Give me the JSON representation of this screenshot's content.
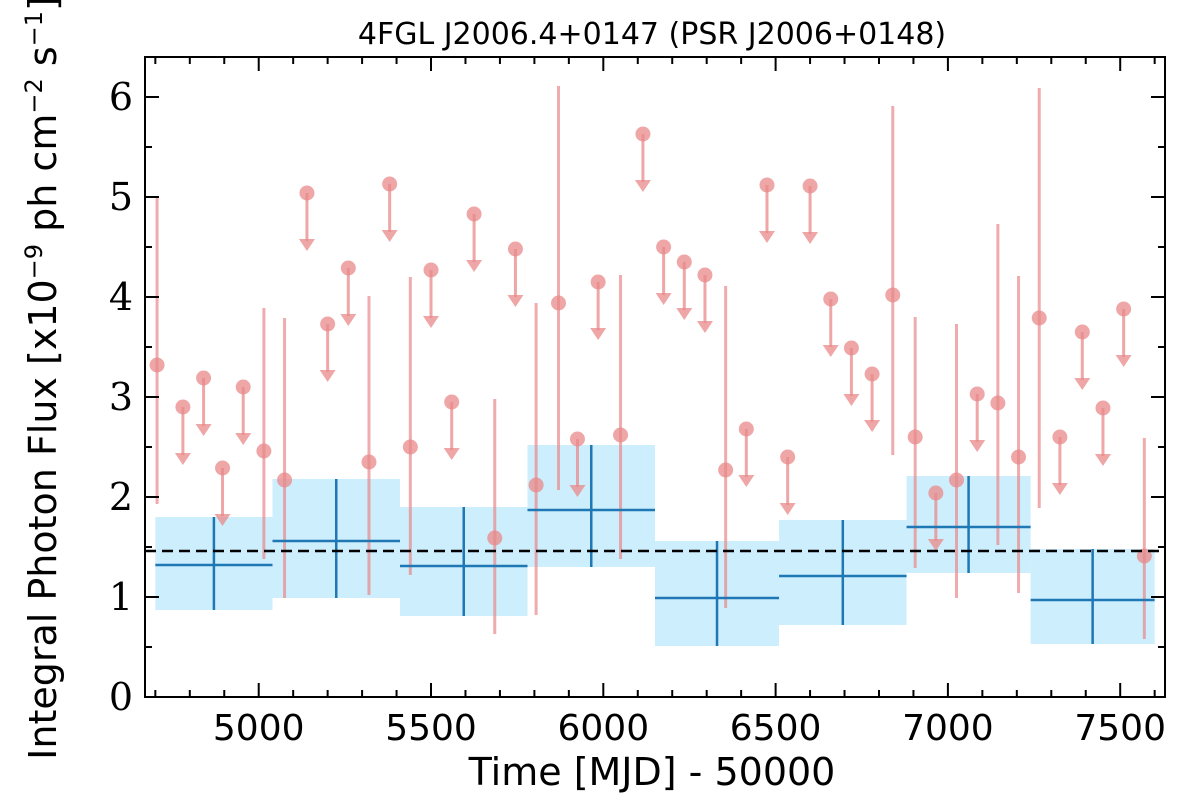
{
  "chart_data": {
    "type": "scatter",
    "title": "4FGL J2006.4+0147 (PSR J2006+0148)",
    "xlabel": "Time [MJD] - 50000",
    "ylabel": "Integral Photon Flux [x10",
    "ylabel_exp1": "−9",
    "ylabel_mid": " ph cm",
    "ylabel_exp2": "−2",
    "ylabel_mid2": " s",
    "ylabel_exp3": "−1",
    "ylabel_end": "]",
    "xlim": [
      4670,
      7630
    ],
    "ylim": [
      0,
      6.4
    ],
    "xticks": [
      5000,
      5500,
      6000,
      6500,
      7000,
      7500
    ],
    "xtick_labels": [
      "5000",
      "5500",
      "6000",
      "6500",
      "7000",
      "7500"
    ],
    "yticks": [
      0,
      1,
      2,
      3,
      4,
      5,
      6
    ],
    "ytick_labels": [
      "0",
      "1",
      "2",
      "3",
      "4",
      "5",
      "6"
    ],
    "mean_flux": 1.46,
    "colors": {
      "short_bin": "#e8888a",
      "long_bin": "#1f77b4",
      "band": "#cdeefc",
      "mean": "#000000"
    },
    "long_bins": [
      {
        "x0": 4700,
        "x1": 5040,
        "y": 1.32,
        "ylo": 0.87,
        "yhi": 1.8
      },
      {
        "x0": 5040,
        "x1": 5410,
        "y": 1.56,
        "ylo": 0.99,
        "yhi": 2.18
      },
      {
        "x0": 5410,
        "x1": 5780,
        "y": 1.31,
        "ylo": 0.81,
        "yhi": 1.9
      },
      {
        "x0": 5780,
        "x1": 6150,
        "y": 1.87,
        "ylo": 1.3,
        "yhi": 2.52
      },
      {
        "x0": 6150,
        "x1": 6510,
        "y": 0.99,
        "ylo": 0.51,
        "yhi": 1.56
      },
      {
        "x0": 6510,
        "x1": 6880,
        "y": 1.21,
        "ylo": 0.72,
        "yhi": 1.77
      },
      {
        "x0": 6880,
        "x1": 7240,
        "y": 1.7,
        "ylo": 1.24,
        "yhi": 2.21
      },
      {
        "x0": 7240,
        "x1": 7600,
        "y": 0.97,
        "ylo": 0.53,
        "yhi": 1.48
      }
    ],
    "short_bins": [
      {
        "x": 4705,
        "y": 3.32,
        "ylo": 1.93,
        "yhi": 5.0
      },
      {
        "x": 4780,
        "y": 2.9,
        "ul": true
      },
      {
        "x": 4840,
        "y": 3.19,
        "ul": true
      },
      {
        "x": 4895,
        "y": 2.29,
        "ul": true
      },
      {
        "x": 4955,
        "y": 3.1,
        "ul": true
      },
      {
        "x": 5015,
        "y": 2.46,
        "ylo": 1.38,
        "yhi": 3.89
      },
      {
        "x": 5075,
        "y": 2.17,
        "ylo": 0.99,
        "yhi": 3.79
      },
      {
        "x": 5140,
        "y": 5.04,
        "ul": true
      },
      {
        "x": 5200,
        "y": 3.73,
        "ul": true
      },
      {
        "x": 5260,
        "y": 4.29,
        "ul": true
      },
      {
        "x": 5320,
        "y": 2.35,
        "ylo": 1.02,
        "yhi": 4.01
      },
      {
        "x": 5380,
        "y": 5.13,
        "ul": true
      },
      {
        "x": 5440,
        "y": 2.5,
        "ylo": 1.22,
        "yhi": 4.2
      },
      {
        "x": 5500,
        "y": 4.27,
        "ul": true
      },
      {
        "x": 5560,
        "y": 2.95,
        "ul": true
      },
      {
        "x": 5625,
        "y": 4.83,
        "ul": true
      },
      {
        "x": 5685,
        "y": 1.59,
        "ylo": 0.63,
        "yhi": 2.98
      },
      {
        "x": 5745,
        "y": 4.48,
        "ul": true
      },
      {
        "x": 5805,
        "y": 2.12,
        "ylo": 0.82,
        "yhi": 3.94
      },
      {
        "x": 5870,
        "y": 3.94,
        "ylo": 2.07,
        "yhi": 6.11
      },
      {
        "x": 5925,
        "y": 2.58,
        "ul": true
      },
      {
        "x": 5985,
        "y": 4.15,
        "ul": true
      },
      {
        "x": 6050,
        "y": 2.62,
        "ylo": 1.38,
        "yhi": 4.22
      },
      {
        "x": 6115,
        "y": 5.63,
        "ul": true
      },
      {
        "x": 6175,
        "y": 4.5,
        "ul": true
      },
      {
        "x": 6235,
        "y": 4.35,
        "ul": true
      },
      {
        "x": 6295,
        "y": 4.22,
        "ul": true
      },
      {
        "x": 6355,
        "y": 2.27,
        "ylo": 0.89,
        "yhi": 4.11
      },
      {
        "x": 6415,
        "y": 2.68,
        "ul": true
      },
      {
        "x": 6475,
        "y": 5.12,
        "ul": true
      },
      {
        "x": 6535,
        "y": 2.4,
        "ul": true
      },
      {
        "x": 6600,
        "y": 5.11,
        "ul": true
      },
      {
        "x": 6660,
        "y": 3.98,
        "ul": true
      },
      {
        "x": 6720,
        "y": 3.49,
        "ul": true
      },
      {
        "x": 6780,
        "y": 3.23,
        "ul": true
      },
      {
        "x": 6840,
        "y": 4.02,
        "ylo": 2.42,
        "yhi": 5.91
      },
      {
        "x": 6905,
        "y": 2.6,
        "ylo": 1.29,
        "yhi": 3.8
      },
      {
        "x": 6965,
        "y": 2.04,
        "ul": true
      },
      {
        "x": 7025,
        "y": 2.17,
        "ylo": 0.99,
        "yhi": 3.73
      },
      {
        "x": 7085,
        "y": 3.03,
        "ul": true
      },
      {
        "x": 7145,
        "y": 2.94,
        "ylo": 1.52,
        "yhi": 4.73
      },
      {
        "x": 7205,
        "y": 2.4,
        "ylo": 1.04,
        "yhi": 4.21
      },
      {
        "x": 7265,
        "y": 3.79,
        "ylo": 1.89,
        "yhi": 6.09
      },
      {
        "x": 7325,
        "y": 2.6,
        "ul": true
      },
      {
        "x": 7390,
        "y": 3.65,
        "ul": true
      },
      {
        "x": 7450,
        "y": 2.89,
        "ul": true
      },
      {
        "x": 7510,
        "y": 3.88,
        "ul": true
      },
      {
        "x": 7570,
        "y": 1.41,
        "ylo": 0.58,
        "yhi": 2.59
      }
    ]
  }
}
